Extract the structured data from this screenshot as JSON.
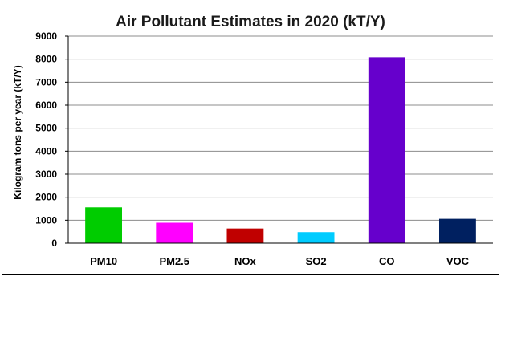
{
  "chart_data": {
    "type": "bar",
    "title": "Air Pollutant Estimates in 2020 (kT/Y)",
    "xlabel": "",
    "ylabel": "Kilogram tons per year (kT/Y)",
    "categories": [
      "PM10",
      "PM2.5",
      "NOx",
      "SO2",
      "CO",
      "VOC"
    ],
    "values": [
      1560,
      890,
      640,
      480,
      8080,
      1060
    ],
    "colors": [
      "#00cc00",
      "#ff00ff",
      "#c00000",
      "#00ccff",
      "#6600cc",
      "#002060"
    ],
    "ylim": [
      0,
      9000
    ],
    "yticks": [
      0,
      1000,
      2000,
      3000,
      4000,
      5000,
      6000,
      7000,
      8000,
      9000
    ],
    "grid": true,
    "legend": "none"
  }
}
